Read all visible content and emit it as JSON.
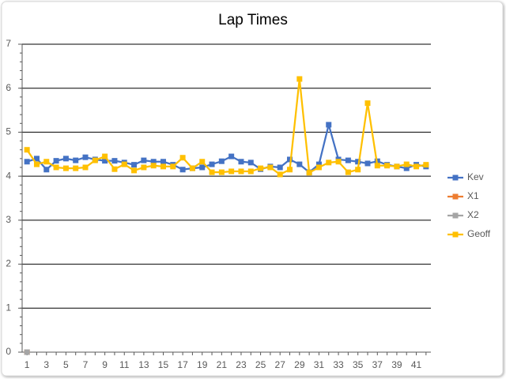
{
  "chart_data": {
    "type": "line",
    "title": "Lap Times",
    "categories": [
      "1",
      null,
      "3",
      null,
      "5",
      null,
      "7",
      null,
      "9",
      null,
      "11",
      null,
      "13",
      null,
      "15",
      null,
      "17",
      null,
      "19",
      null,
      "21",
      null,
      "23",
      null,
      "25",
      null,
      "27",
      null,
      "29",
      null,
      "31",
      null,
      "33",
      null,
      "35",
      null,
      "37",
      null,
      "39",
      null,
      "41",
      null
    ],
    "series": [
      {
        "name": "Kev",
        "color": "#4472c4",
        "values": [
          4.33,
          4.4,
          4.15,
          4.35,
          4.4,
          4.36,
          4.43,
          4.38,
          4.35,
          4.35,
          4.31,
          4.26,
          4.36,
          4.33,
          4.33,
          4.26,
          4.15,
          4.18,
          4.2,
          4.27,
          4.34,
          4.45,
          4.33,
          4.31,
          4.16,
          4.22,
          4.2,
          4.38,
          4.27,
          4.09,
          4.27,
          5.17,
          4.38,
          4.36,
          4.33,
          4.29,
          4.34,
          4.26,
          4.22,
          4.18,
          4.26,
          4.22
        ]
      },
      {
        "name": "X1",
        "color": "#ed7d31",
        "values": [
          0,
          null,
          null,
          null,
          null,
          null,
          null,
          null,
          null,
          null,
          null,
          null,
          null,
          null,
          null,
          null,
          null,
          null,
          null,
          null,
          null,
          null,
          null,
          null,
          null,
          null,
          null,
          null,
          null,
          null,
          null,
          null,
          null,
          null,
          null,
          null,
          null,
          null,
          null,
          null,
          null,
          null
        ]
      },
      {
        "name": "X2",
        "color": "#a5a5a5",
        "values": [
          0,
          null,
          null,
          null,
          null,
          null,
          null,
          null,
          null,
          null,
          null,
          null,
          null,
          null,
          null,
          null,
          null,
          null,
          null,
          null,
          null,
          null,
          null,
          null,
          null,
          null,
          null,
          null,
          null,
          null,
          null,
          null,
          null,
          null,
          null,
          null,
          null,
          null,
          null,
          null,
          null,
          null
        ]
      },
      {
        "name": "Geoff",
        "color": "#ffc000",
        "values": [
          4.6,
          4.27,
          4.33,
          4.2,
          4.18,
          4.18,
          4.2,
          4.36,
          4.45,
          4.16,
          4.27,
          4.13,
          4.2,
          4.24,
          4.22,
          4.22,
          4.42,
          4.18,
          4.33,
          4.09,
          4.09,
          4.11,
          4.11,
          4.11,
          4.18,
          4.2,
          4.04,
          4.15,
          6.21,
          4.08,
          4.2,
          4.31,
          4.33,
          4.09,
          4.15,
          5.66,
          4.24,
          4.24,
          4.22,
          4.27,
          4.22,
          4.26
        ]
      }
    ],
    "ylim": [
      0,
      7
    ],
    "yticks": [
      0,
      1,
      2,
      3,
      4,
      5,
      6,
      7
    ],
    "grid": true,
    "legend": "right"
  }
}
